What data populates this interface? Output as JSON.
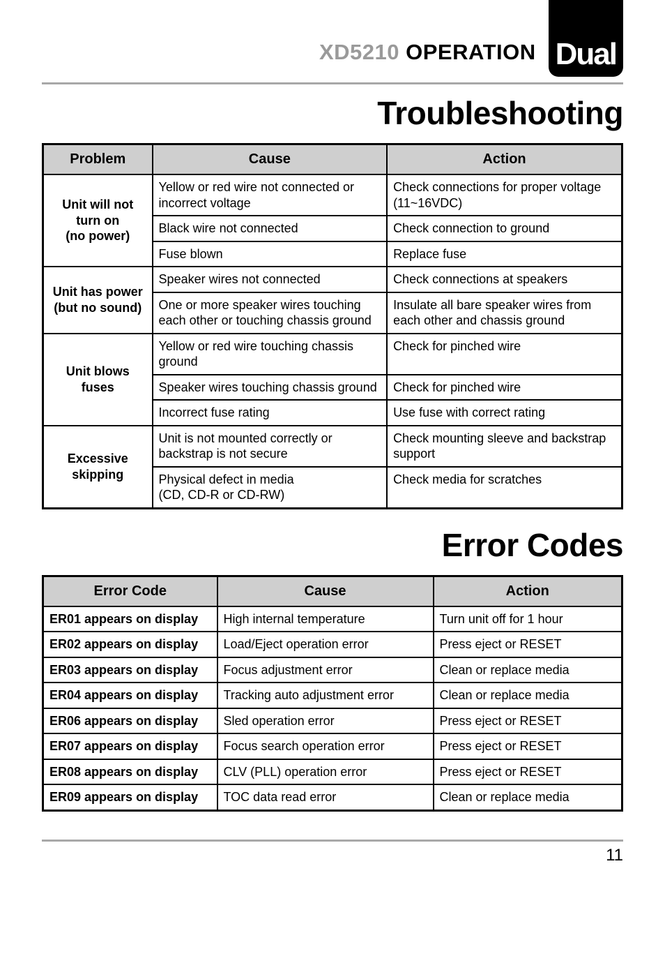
{
  "header": {
    "model": "XD5210",
    "section_word": "OPERATION",
    "logo": "Dual"
  },
  "colors": {
    "header_gray": "#9a9a9a",
    "rule_gray": "#a8a8a8",
    "table_header_bg": "#cfcfcf",
    "border": "#000000",
    "text": "#000000",
    "background": "#ffffff"
  },
  "typography": {
    "header_title_size": 31,
    "logo_size": 44,
    "section_title_size": 46,
    "table_header_size": 20,
    "cell_size": 18,
    "page_num_size": 24
  },
  "section1": {
    "title": "Troubleshooting",
    "columns": [
      "Problem",
      "Cause",
      "Action"
    ],
    "groups": [
      {
        "label_lines": [
          "Unit will not",
          "turn on",
          "(no power)"
        ],
        "rows": [
          {
            "cause": "Yellow or red wire not connected or incorrect voltage",
            "action": "Check connections for proper voltage (11~16VDC)"
          },
          {
            "cause": "Black wire not connected",
            "action": "Check connection to ground"
          },
          {
            "cause": "Fuse blown",
            "action": "Replace fuse"
          }
        ]
      },
      {
        "label_lines": [
          "Unit has power",
          "(but no sound)"
        ],
        "rows": [
          {
            "cause": "Speaker wires not connected",
            "action": "Check connections at speakers"
          },
          {
            "cause": "One or more speaker wires touching each other or touching chassis ground",
            "action": "Insulate all bare speaker wires from each other and chassis ground"
          }
        ]
      },
      {
        "label_lines": [
          "Unit blows",
          "fuses"
        ],
        "rows": [
          {
            "cause": "Yellow or red wire touching chassis ground",
            "action": "Check for pinched wire"
          },
          {
            "cause": "Speaker wires touching chassis ground",
            "action": "Check for pinched wire"
          },
          {
            "cause": "Incorrect fuse rating",
            "action": "Use fuse with correct rating"
          }
        ]
      },
      {
        "label_lines": [
          "Excessive",
          "skipping"
        ],
        "rows": [
          {
            "cause": "Unit is not mounted correctly or backstrap is not secure",
            "action": "Check mounting sleeve and backstrap support"
          },
          {
            "cause": "Physical defect in media\n(CD, CD-R or CD-RW)",
            "action": "Check media for scratches"
          }
        ]
      }
    ]
  },
  "section2": {
    "title": "Error Codes",
    "columns": [
      "Error Code",
      "Cause",
      "Action"
    ],
    "rows": [
      {
        "code": "ER01 appears on display",
        "cause": "High internal temperature",
        "action": "Turn unit off for 1 hour"
      },
      {
        "code": "ER02 appears on display",
        "cause": "Load/Eject operation error",
        "action": "Press eject or RESET"
      },
      {
        "code": "ER03 appears on display",
        "cause": "Focus adjustment error",
        "action": "Clean or replace media"
      },
      {
        "code": "ER04 appears on display",
        "cause": "Tracking auto adjustment error",
        "action": "Clean or replace media"
      },
      {
        "code": "ER06 appears on display",
        "cause": "Sled operation error",
        "action": "Press eject or RESET"
      },
      {
        "code": "ER07 appears on display",
        "cause": "Focus search operation error",
        "action": "Press eject or RESET"
      },
      {
        "code": "ER08 appears on display",
        "cause": "CLV (PLL) operation error",
        "action": "Press eject or RESET"
      },
      {
        "code": "ER09 appears on display",
        "cause": "TOC data read error",
        "action": "Clean or replace media"
      }
    ]
  },
  "page_number": "11"
}
